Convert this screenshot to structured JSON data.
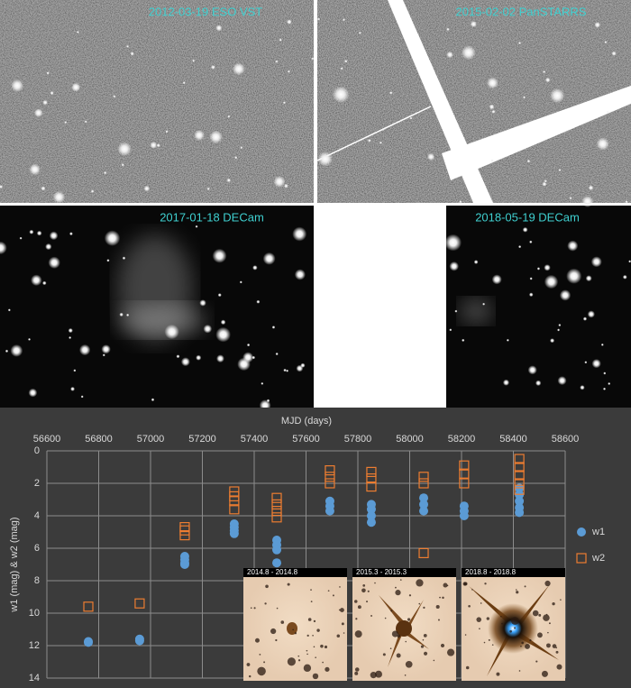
{
  "images": [
    {
      "label": "2012-03-19 ESO VST"
    },
    {
      "label": "2015-02-02 PanSTARRS"
    },
    {
      "label": "2017-01-18 DECam"
    },
    {
      "label": "2018-05-19 DECam"
    }
  ],
  "insets": [
    {
      "label": "2014.8 - 2014.8"
    },
    {
      "label": "2015.3 - 2015.3"
    },
    {
      "label": "2018.8 - 2018.8"
    }
  ],
  "chart_data": {
    "type": "scatter",
    "x_label": "MJD (days)",
    "y_label": "w1 (mag) & w2 (mag)",
    "xlim": [
      56600,
      58600
    ],
    "xticks": [
      56600,
      56800,
      57000,
      57200,
      57400,
      57600,
      57800,
      58000,
      58200,
      58400,
      58600
    ],
    "ylim": [
      0,
      14
    ],
    "yticks": [
      0,
      2,
      4,
      6,
      8,
      10,
      12,
      14
    ],
    "y_inverted": true,
    "x_axis_position": "top",
    "grid": true,
    "legend": "right",
    "series": [
      {
        "name": "w1",
        "color": "#5b9bd5",
        "marker": "circle",
        "x": [
          56760,
          56760,
          56958,
          56958,
          57132,
          57132,
          57132,
          57132,
          57323,
          57323,
          57323,
          57323,
          57487,
          57487,
          57487,
          57487,
          57692,
          57692,
          57692,
          57852,
          57852,
          57852,
          57852,
          58054,
          58054,
          58054,
          58210,
          58210,
          58210,
          58423,
          58423,
          58423,
          58423,
          58423
        ],
        "values": [
          11.8,
          11.75,
          11.6,
          11.7,
          6.5,
          6.7,
          6.9,
          7.0,
          4.5,
          4.7,
          4.9,
          5.1,
          5.5,
          5.8,
          6.1,
          6.9,
          3.1,
          3.4,
          3.7,
          3.3,
          3.6,
          4.0,
          4.4,
          2.9,
          3.3,
          3.7,
          3.4,
          3.7,
          4.0,
          2.3,
          2.7,
          3.1,
          3.5,
          3.8
        ]
      },
      {
        "name": "w2",
        "color": "#ed7d31",
        "marker": "square",
        "x": [
          56760,
          56958,
          57132,
          57132,
          57132,
          57323,
          57323,
          57323,
          57323,
          57487,
          57487,
          57487,
          57487,
          57692,
          57692,
          57692,
          57852,
          57852,
          57852,
          58054,
          58054,
          58054,
          58210,
          58210,
          58210,
          58423,
          58423,
          58423,
          58423,
          58423
        ],
        "values": [
          9.6,
          9.4,
          4.7,
          4.9,
          5.2,
          2.5,
          2.8,
          3.1,
          3.6,
          2.9,
          3.3,
          3.7,
          4.1,
          1.2,
          1.6,
          2.0,
          1.3,
          1.7,
          2.2,
          1.6,
          2.0,
          6.3,
          0.9,
          1.4,
          2.0,
          0.5,
          1.0,
          1.5,
          2.0,
          2.4
        ]
      }
    ]
  }
}
